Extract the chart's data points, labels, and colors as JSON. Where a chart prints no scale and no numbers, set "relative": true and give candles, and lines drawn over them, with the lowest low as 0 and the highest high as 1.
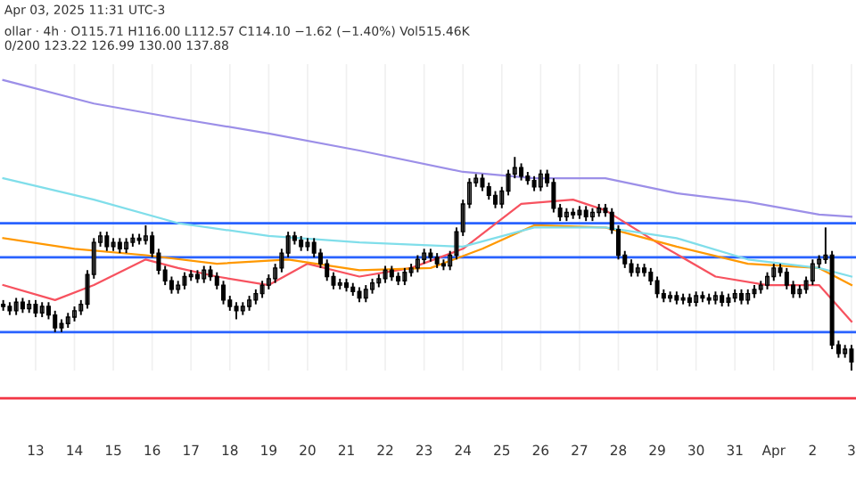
{
  "chart_data": {
    "type": "candlestick",
    "relative": true,
    "grid": "x",
    "annotations": [
      "Apr 03, 2025 11:31 UTC-3",
      "ollar · 4h · O115.71 H116.00 L112.57 C114.10 −1.62 (−1.40%) Vol515.46K",
      "0/200 123.22 126.99 130.00 137.88"
    ],
    "categories": [
      null,
      null,
      null,
      null,
      null,
      "13",
      null,
      null,
      null,
      null,
      null,
      "14",
      null,
      null,
      null,
      null,
      null,
      "15",
      null,
      null,
      null,
      null,
      null,
      "16",
      null,
      null,
      null,
      null,
      null,
      "17",
      null,
      null,
      null,
      null,
      null,
      "18",
      null,
      null,
      null,
      null,
      null,
      "19",
      null,
      null,
      null,
      null,
      null,
      "20",
      null,
      null,
      null,
      null,
      null,
      "21",
      null,
      null,
      null,
      null,
      null,
      "22",
      null,
      null,
      null,
      null,
      null,
      "23",
      null,
      null,
      null,
      null,
      null,
      "24",
      null,
      null,
      null,
      null,
      null,
      "25",
      null,
      null,
      null,
      null,
      null,
      "26",
      null,
      null,
      null,
      null,
      null,
      "27",
      null,
      null,
      null,
      null,
      null,
      "28",
      null,
      null,
      null,
      null,
      null,
      "29",
      null,
      null,
      null,
      null,
      null,
      "30",
      null,
      null,
      null,
      null,
      null,
      "31",
      null,
      null,
      null,
      null,
      null,
      "Apr",
      null,
      null,
      null,
      null,
      null,
      "2",
      null,
      null,
      null,
      null,
      null,
      "3"
    ],
    "ohlc": [
      [
        0.31,
        0.33,
        0.28,
        0.3
      ],
      [
        0.3,
        0.32,
        0.26,
        0.28
      ],
      [
        0.28,
        0.34,
        0.26,
        0.32
      ],
      [
        0.32,
        0.34,
        0.27,
        0.29
      ],
      [
        0.29,
        0.33,
        0.27,
        0.31
      ],
      [
        0.31,
        0.33,
        0.25,
        0.27
      ],
      [
        0.27,
        0.32,
        0.25,
        0.3
      ],
      [
        0.3,
        0.32,
        0.24,
        0.26
      ],
      [
        0.26,
        0.28,
        0.18,
        0.2
      ],
      [
        0.2,
        0.24,
        0.18,
        0.22
      ],
      [
        0.22,
        0.27,
        0.2,
        0.25
      ],
      [
        0.25,
        0.3,
        0.23,
        0.28
      ],
      [
        0.28,
        0.33,
        0.26,
        0.31
      ],
      [
        0.31,
        0.47,
        0.29,
        0.45
      ],
      [
        0.45,
        0.62,
        0.43,
        0.6
      ],
      [
        0.6,
        0.65,
        0.58,
        0.63
      ],
      [
        0.63,
        0.65,
        0.56,
        0.58
      ],
      [
        0.58,
        0.62,
        0.56,
        0.6
      ],
      [
        0.6,
        0.62,
        0.55,
        0.57
      ],
      [
        0.57,
        0.62,
        0.55,
        0.6
      ],
      [
        0.6,
        0.64,
        0.58,
        0.62
      ],
      [
        0.62,
        0.64,
        0.59,
        0.61
      ],
      [
        0.61,
        0.68,
        0.59,
        0.63
      ],
      [
        0.63,
        0.65,
        0.53,
        0.55
      ],
      [
        0.55,
        0.57,
        0.45,
        0.47
      ],
      [
        0.47,
        0.49,
        0.4,
        0.42
      ],
      [
        0.42,
        0.44,
        0.36,
        0.38
      ],
      [
        0.38,
        0.42,
        0.36,
        0.4
      ],
      [
        0.4,
        0.46,
        0.38,
        0.44
      ],
      [
        0.44,
        0.47,
        0.42,
        0.45
      ],
      [
        0.45,
        0.47,
        0.41,
        0.43
      ],
      [
        0.43,
        0.49,
        0.41,
        0.47
      ],
      [
        0.47,
        0.49,
        0.42,
        0.44
      ],
      [
        0.44,
        0.46,
        0.38,
        0.4
      ],
      [
        0.4,
        0.42,
        0.31,
        0.33
      ],
      [
        0.33,
        0.35,
        0.28,
        0.3
      ],
      [
        0.3,
        0.32,
        0.24,
        0.28
      ],
      [
        0.28,
        0.32,
        0.26,
        0.3
      ],
      [
        0.3,
        0.35,
        0.28,
        0.33
      ],
      [
        0.33,
        0.38,
        0.31,
        0.36
      ],
      [
        0.36,
        0.42,
        0.34,
        0.4
      ],
      [
        0.4,
        0.45,
        0.38,
        0.43
      ],
      [
        0.43,
        0.5,
        0.41,
        0.48
      ],
      [
        0.48,
        0.57,
        0.46,
        0.55
      ],
      [
        0.55,
        0.65,
        0.53,
        0.63
      ],
      [
        0.63,
        0.65,
        0.59,
        0.61
      ],
      [
        0.61,
        0.63,
        0.56,
        0.58
      ],
      [
        0.58,
        0.62,
        0.56,
        0.6
      ],
      [
        0.6,
        0.62,
        0.53,
        0.55
      ],
      [
        0.55,
        0.57,
        0.48,
        0.5
      ],
      [
        0.5,
        0.52,
        0.42,
        0.44
      ],
      [
        0.44,
        0.46,
        0.38,
        0.4
      ],
      [
        0.4,
        0.43,
        0.38,
        0.41
      ],
      [
        0.41,
        0.43,
        0.37,
        0.39
      ],
      [
        0.39,
        0.41,
        0.35,
        0.37
      ],
      [
        0.37,
        0.39,
        0.32,
        0.34
      ],
      [
        0.34,
        0.4,
        0.32,
        0.38
      ],
      [
        0.38,
        0.43,
        0.36,
        0.41
      ],
      [
        0.41,
        0.45,
        0.39,
        0.43
      ],
      [
        0.43,
        0.49,
        0.41,
        0.47
      ],
      [
        0.47,
        0.49,
        0.42,
        0.44
      ],
      [
        0.44,
        0.46,
        0.4,
        0.42
      ],
      [
        0.42,
        0.48,
        0.4,
        0.46
      ],
      [
        0.46,
        0.5,
        0.44,
        0.48
      ],
      [
        0.48,
        0.54,
        0.46,
        0.52
      ],
      [
        0.52,
        0.57,
        0.5,
        0.55
      ],
      [
        0.55,
        0.57,
        0.51,
        0.53
      ],
      [
        0.53,
        0.55,
        0.48,
        0.5
      ],
      [
        0.5,
        0.52,
        0.47,
        0.49
      ],
      [
        0.49,
        0.56,
        0.47,
        0.54
      ],
      [
        0.54,
        0.67,
        0.52,
        0.65
      ],
      [
        0.65,
        0.8,
        0.63,
        0.78
      ],
      [
        0.78,
        0.9,
        0.76,
        0.88
      ],
      [
        0.88,
        0.92,
        0.86,
        0.9
      ],
      [
        0.9,
        0.92,
        0.84,
        0.86
      ],
      [
        0.86,
        0.88,
        0.8,
        0.82
      ],
      [
        0.82,
        0.84,
        0.76,
        0.78
      ],
      [
        0.78,
        0.86,
        0.76,
        0.84
      ],
      [
        0.84,
        0.94,
        0.82,
        0.92
      ],
      [
        0.92,
        1.0,
        0.9,
        0.95
      ],
      [
        0.95,
        0.97,
        0.89,
        0.91
      ],
      [
        0.91,
        0.93,
        0.87,
        0.89
      ],
      [
        0.89,
        0.91,
        0.84,
        0.86
      ],
      [
        0.86,
        0.94,
        0.84,
        0.92
      ],
      [
        0.92,
        0.94,
        0.86,
        0.88
      ],
      [
        0.88,
        0.9,
        0.74,
        0.76
      ],
      [
        0.76,
        0.78,
        0.7,
        0.72
      ],
      [
        0.72,
        0.76,
        0.7,
        0.74
      ],
      [
        0.74,
        0.76,
        0.71,
        0.73
      ],
      [
        0.73,
        0.77,
        0.71,
        0.75
      ],
      [
        0.75,
        0.77,
        0.7,
        0.72
      ],
      [
        0.72,
        0.76,
        0.7,
        0.74
      ],
      [
        0.74,
        0.78,
        0.72,
        0.76
      ],
      [
        0.76,
        0.78,
        0.72,
        0.74
      ],
      [
        0.74,
        0.76,
        0.64,
        0.66
      ],
      [
        0.66,
        0.68,
        0.52,
        0.54
      ],
      [
        0.54,
        0.56,
        0.48,
        0.5
      ],
      [
        0.5,
        0.52,
        0.44,
        0.46
      ],
      [
        0.46,
        0.5,
        0.44,
        0.48
      ],
      [
        0.48,
        0.5,
        0.44,
        0.46
      ],
      [
        0.46,
        0.48,
        0.4,
        0.42
      ],
      [
        0.42,
        0.44,
        0.34,
        0.36
      ],
      [
        0.36,
        0.38,
        0.32,
        0.34
      ],
      [
        0.34,
        0.37,
        0.32,
        0.35
      ],
      [
        0.35,
        0.37,
        0.31,
        0.33
      ],
      [
        0.33,
        0.36,
        0.31,
        0.34
      ],
      [
        0.34,
        0.36,
        0.3,
        0.32
      ],
      [
        0.32,
        0.37,
        0.3,
        0.35
      ],
      [
        0.35,
        0.37,
        0.32,
        0.34
      ],
      [
        0.34,
        0.36,
        0.31,
        0.33
      ],
      [
        0.33,
        0.37,
        0.31,
        0.35
      ],
      [
        0.35,
        0.37,
        0.3,
        0.32
      ],
      [
        0.32,
        0.36,
        0.3,
        0.34
      ],
      [
        0.34,
        0.38,
        0.32,
        0.36
      ],
      [
        0.36,
        0.38,
        0.31,
        0.33
      ],
      [
        0.33,
        0.38,
        0.31,
        0.36
      ],
      [
        0.36,
        0.4,
        0.34,
        0.38
      ],
      [
        0.38,
        0.42,
        0.36,
        0.4
      ],
      [
        0.4,
        0.46,
        0.38,
        0.44
      ],
      [
        0.44,
        0.5,
        0.42,
        0.48
      ],
      [
        0.48,
        0.5,
        0.44,
        0.46
      ],
      [
        0.46,
        0.48,
        0.38,
        0.4
      ],
      [
        0.4,
        0.42,
        0.34,
        0.36
      ],
      [
        0.36,
        0.4,
        0.34,
        0.38
      ],
      [
        0.38,
        0.44,
        0.36,
        0.42
      ],
      [
        0.42,
        0.52,
        0.4,
        0.5
      ],
      [
        0.5,
        0.54,
        0.48,
        0.52
      ],
      [
        0.52,
        0.67,
        0.5,
        0.54
      ],
      [
        0.54,
        0.56,
        0.1,
        0.12
      ],
      [
        0.12,
        0.14,
        0.06,
        0.08
      ],
      [
        0.08,
        0.12,
        0.06,
        0.1
      ],
      [
        0.1,
        0.12,
        0.0,
        0.04
      ]
    ],
    "series": [
      {
        "type": "line",
        "color": "#f7525f",
        "values": [
          0.4,
          null,
          null,
          null,
          null,
          null,
          null,
          null,
          0.33,
          null,
          null,
          null,
          null,
          null,
          0.4,
          null,
          null,
          null,
          null,
          null,
          null,
          null,
          0.52,
          null,
          null,
          null,
          null,
          0.48,
          null,
          null,
          null,
          null,
          null,
          0.44,
          null,
          null,
          null,
          null,
          null,
          null,
          null,
          0.4,
          null,
          null,
          null,
          null,
          null,
          0.5,
          null,
          null,
          null,
          null,
          null,
          null,
          null,
          0.44,
          null,
          null,
          null,
          null,
          null,
          null,
          null,
          0.48,
          null,
          null,
          null,
          null,
          null,
          null,
          null,
          0.57,
          null,
          null,
          null,
          null,
          null,
          null,
          null,
          null,
          0.78,
          null,
          null,
          null,
          null,
          null,
          null,
          null,
          0.8,
          null,
          null,
          null,
          null,
          0.75,
          null,
          null,
          null,
          null,
          null,
          null,
          null,
          null,
          0.58,
          null,
          null,
          null,
          null,
          null,
          null,
          null,
          0.44,
          null,
          null,
          null,
          null,
          null,
          null,
          null,
          0.4,
          null,
          null,
          null,
          null,
          null,
          null,
          null,
          0.4,
          null,
          null,
          null,
          null,
          0.23
        ]
      },
      {
        "type": "line",
        "color": "#ff9800",
        "values": [
          0.62,
          null,
          null,
          null,
          null,
          null,
          null,
          null,
          null,
          null,
          null,
          0.57,
          null,
          null,
          null,
          null,
          null,
          null,
          null,
          null,
          null,
          null,
          0.54,
          null,
          null,
          null,
          null,
          null,
          null,
          null,
          null,
          null,
          null,
          0.5,
          null,
          null,
          null,
          null,
          null,
          null,
          null,
          null,
          null,
          null,
          0.52,
          null,
          null,
          null,
          null,
          null,
          null,
          null,
          null,
          null,
          null,
          0.47,
          null,
          null,
          null,
          null,
          null,
          null,
          null,
          null,
          null,
          null,
          0.48,
          null,
          null,
          null,
          null,
          null,
          null,
          null,
          0.57,
          null,
          null,
          null,
          null,
          null,
          null,
          null,
          0.68,
          null,
          null,
          null,
          null,
          null,
          null,
          null,
          null,
          null,
          null,
          0.67,
          null,
          null,
          null,
          null,
          null,
          null,
          null,
          null,
          null,
          null,
          0.58,
          null,
          null,
          null,
          null,
          null,
          null,
          null,
          null,
          null,
          null,
          0.5,
          null,
          null,
          null,
          null,
          null,
          null,
          null,
          null,
          null,
          null,
          0.48,
          null,
          null,
          null,
          null,
          0.4
        ]
      },
      {
        "type": "line",
        "color": "#80deea",
        "values": [
          0.9,
          null,
          null,
          null,
          null,
          null,
          null,
          null,
          null,
          null,
          null,
          null,
          null,
          null,
          0.8,
          null,
          null,
          null,
          null,
          null,
          null,
          null,
          null,
          null,
          null,
          null,
          null,
          0.69,
          null,
          null,
          null,
          null,
          null,
          null,
          null,
          null,
          null,
          null,
          null,
          null,
          null,
          0.63,
          null,
          null,
          null,
          null,
          null,
          null,
          null,
          null,
          null,
          null,
          null,
          null,
          null,
          0.6,
          null,
          null,
          null,
          null,
          null,
          null,
          null,
          null,
          null,
          null,
          null,
          null,
          null,
          null,
          null,
          0.58,
          null,
          null,
          null,
          null,
          null,
          null,
          null,
          null,
          null,
          null,
          0.67,
          null,
          null,
          null,
          null,
          null,
          null,
          null,
          null,
          null,
          null,
          0.67,
          null,
          null,
          null,
          null,
          null,
          null,
          null,
          null,
          null,
          null,
          0.62,
          null,
          null,
          null,
          null,
          null,
          null,
          null,
          null,
          null,
          null,
          0.52,
          null,
          null,
          null,
          null,
          null,
          null,
          null,
          null,
          null,
          null,
          0.48,
          null,
          null,
          null,
          null,
          0.44
        ]
      },
      {
        "type": "line",
        "color": "#9c8fe8",
        "values": [
          1.36,
          null,
          null,
          null,
          null,
          null,
          null,
          null,
          null,
          null,
          null,
          null,
          null,
          null,
          1.25,
          null,
          null,
          null,
          null,
          null,
          null,
          null,
          null,
          null,
          null,
          null,
          null,
          1.18,
          null,
          null,
          null,
          null,
          null,
          null,
          null,
          null,
          null,
          null,
          null,
          null,
          null,
          1.11,
          null,
          null,
          null,
          null,
          null,
          null,
          null,
          null,
          null,
          null,
          null,
          null,
          null,
          1.03,
          null,
          null,
          null,
          null,
          null,
          null,
          null,
          null,
          null,
          null,
          null,
          null,
          null,
          null,
          null,
          0.93,
          null,
          null,
          null,
          null,
          null,
          null,
          null,
          null,
          null,
          null,
          0.9,
          null,
          null,
          null,
          null,
          null,
          null,
          null,
          null,
          null,
          null,
          0.9,
          null,
          null,
          null,
          null,
          null,
          null,
          null,
          null,
          null,
          null,
          0.83,
          null,
          null,
          null,
          null,
          null,
          null,
          null,
          null,
          null,
          null,
          0.79,
          null,
          null,
          null,
          null,
          null,
          null,
          null,
          null,
          null,
          null,
          0.73,
          null,
          null,
          null,
          null,
          0.72
        ]
      }
    ],
    "ref_lines": [
      {
        "axis": "y",
        "value": 0.69,
        "color": "#2962ff"
      },
      {
        "axis": "y",
        "value": 0.53,
        "color": "#2962ff"
      },
      {
        "axis": "y",
        "value": 0.18,
        "color": "#2962ff"
      },
      {
        "axis": "y",
        "value": -0.13,
        "color": "#f23645"
      }
    ]
  }
}
